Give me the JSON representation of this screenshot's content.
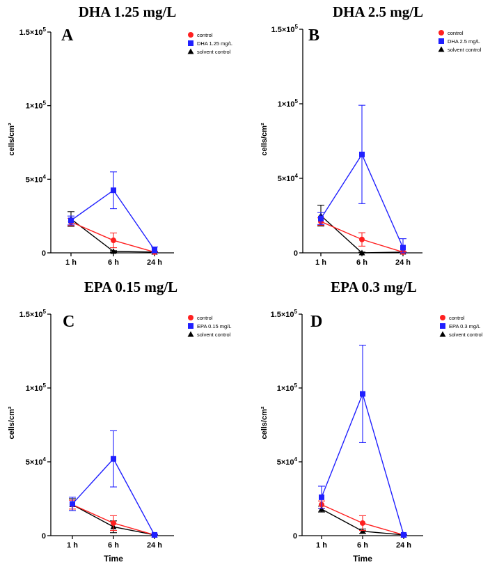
{
  "chart_data": [
    {
      "type": "line",
      "title": "DHA 1.25 mg/L",
      "panel": "A",
      "categories": [
        "1 h",
        "6 h",
        "24 h"
      ],
      "xlabel": "",
      "ylabel": "cells/cm²",
      "ylim": [
        0,
        150000
      ],
      "yticks": [
        {
          "v": 0,
          "b": "0",
          "e": ""
        },
        {
          "v": 50000,
          "b": "5×10",
          "e": "4"
        },
        {
          "v": 100000,
          "b": "1×10",
          "e": "5"
        },
        {
          "v": 150000,
          "b": "1.5×10",
          "e": "5"
        }
      ],
      "series": [
        {
          "name": "control",
          "color": "#ff2020",
          "marker": "circle",
          "values": [
            21000,
            8500,
            500
          ],
          "errors": [
            2500,
            5000,
            500
          ]
        },
        {
          "name": "DHA 1.25 mg/L",
          "color": "#2020ff",
          "marker": "square",
          "values": [
            22000,
            42500,
            2000
          ],
          "errors": [
            3000,
            12500,
            2000
          ]
        },
        {
          "name": "solvent control",
          "color": "#000000",
          "marker": "triangle",
          "values": [
            23000,
            1000,
            500
          ],
          "errors": [
            5000,
            500,
            300
          ]
        }
      ]
    },
    {
      "type": "line",
      "title": "DHA 2.5 mg/L",
      "panel": "B",
      "categories": [
        "1 h",
        "6 h",
        "24 h"
      ],
      "xlabel": "",
      "ylabel": "cells/cm²",
      "ylim": [
        0,
        150000
      ],
      "yticks": [
        {
          "v": 0,
          "b": "0",
          "e": ""
        },
        {
          "v": 50000,
          "b": "5×10",
          "e": "4"
        },
        {
          "v": 100000,
          "b": "1×10",
          "e": "5"
        },
        {
          "v": 150000,
          "b": "1.5×10",
          "e": "5"
        }
      ],
      "series": [
        {
          "name": "control",
          "color": "#ff2020",
          "marker": "circle",
          "values": [
            21000,
            9000,
            500
          ],
          "errors": [
            2500,
            4500,
            500
          ]
        },
        {
          "name": "DHA 2.5 mg/L",
          "color": "#2020ff",
          "marker": "square",
          "values": [
            23000,
            66000,
            3500
          ],
          "errors": [
            4000,
            33000,
            6000
          ]
        },
        {
          "name": "solvent control",
          "color": "#000000",
          "marker": "triangle",
          "values": [
            25000,
            0,
            500
          ],
          "errors": [
            7000,
            500,
            300
          ]
        }
      ]
    },
    {
      "type": "line",
      "title": "EPA 0.15 mg/L",
      "panel": "C",
      "categories": [
        "1 h",
        "6 h",
        "24 h"
      ],
      "xlabel": "Time",
      "ylabel": "cells/cm²",
      "ylim": [
        0,
        150000
      ],
      "yticks": [
        {
          "v": 0,
          "b": "0",
          "e": ""
        },
        {
          "v": 50000,
          "b": "5×10",
          "e": "4"
        },
        {
          "v": 100000,
          "b": "1×10",
          "e": "5"
        },
        {
          "v": 150000,
          "b": "1.5×10",
          "e": "5"
        }
      ],
      "series": [
        {
          "name": "control",
          "color": "#ff2020",
          "marker": "circle",
          "values": [
            21000,
            8500,
            500
          ],
          "errors": [
            3000,
            5000,
            500
          ]
        },
        {
          "name": "EPA 0.15 mg/L",
          "color": "#2020ff",
          "marker": "square",
          "values": [
            21500,
            52000,
            500
          ],
          "errors": [
            4500,
            19000,
            500
          ]
        },
        {
          "name": "solvent control",
          "color": "#000000",
          "marker": "triangle",
          "values": [
            21000,
            6000,
            500
          ],
          "errors": [
            4000,
            4000,
            300
          ]
        }
      ]
    },
    {
      "type": "line",
      "title": "EPA 0.3 mg/L",
      "panel": "D",
      "categories": [
        "1 h",
        "6 h",
        "24 h"
      ],
      "xlabel": "Time",
      "ylabel": "cells/cm²",
      "ylim": [
        0,
        150000
      ],
      "yticks": [
        {
          "v": 0,
          "b": "0",
          "e": ""
        },
        {
          "v": 50000,
          "b": "5×10",
          "e": "4"
        },
        {
          "v": 100000,
          "b": "1×10",
          "e": "5"
        },
        {
          "v": 150000,
          "b": "1.5×10",
          "e": "5"
        }
      ],
      "series": [
        {
          "name": "control",
          "color": "#ff2020",
          "marker": "circle",
          "values": [
            21000,
            8500,
            500
          ],
          "errors": [
            2500,
            5000,
            500
          ]
        },
        {
          "name": "EPA 0.3 mg/L",
          "color": "#2020ff",
          "marker": "square",
          "values": [
            26000,
            96000,
            500
          ],
          "errors": [
            7500,
            33000,
            500
          ]
        },
        {
          "name": "solvent control",
          "color": "#000000",
          "marker": "triangle",
          "values": [
            18000,
            3000,
            500
          ],
          "errors": [
            2000,
            1500,
            300
          ]
        }
      ]
    }
  ]
}
